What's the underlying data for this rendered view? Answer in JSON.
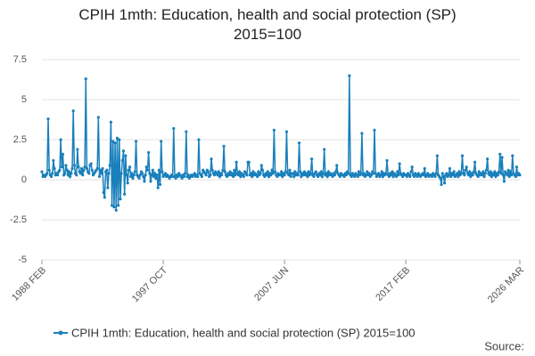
{
  "chart_data": {
    "type": "line",
    "title": "CPIH 1mth: Education, health and social protection (SP) 2015=100",
    "source": "Source:",
    "categories": [
      "1988 FEB",
      null,
      null,
      null,
      null,
      null,
      null,
      null,
      null,
      null,
      null,
      null,
      null,
      null,
      null,
      null,
      null,
      null,
      null,
      null,
      null,
      null,
      null,
      null,
      null,
      null,
      null,
      null,
      null,
      null,
      null,
      null,
      null,
      null,
      null,
      null,
      null,
      null,
      null,
      null,
      null,
      null,
      null,
      null,
      null,
      null,
      null,
      null,
      null,
      null,
      null,
      null,
      null,
      null,
      null,
      null,
      null,
      null,
      null,
      null,
      null,
      null,
      null,
      null,
      null,
      null,
      null,
      null,
      null,
      null,
      null,
      null,
      null,
      null,
      null,
      null,
      null,
      null,
      null,
      null,
      null,
      null,
      null,
      null,
      null,
      null,
      null,
      null,
      null,
      null,
      null,
      null,
      null,
      null,
      null,
      null,
      null,
      null,
      null,
      null,
      null,
      null,
      null,
      null,
      null,
      null,
      null,
      null,
      null,
      null,
      null,
      null,
      null,
      null,
      null,
      null,
      "1997 OCT",
      null,
      null,
      null,
      null,
      null,
      null,
      null,
      null,
      null,
      null,
      null,
      null,
      null,
      null,
      null,
      null,
      null,
      null,
      null,
      null,
      null,
      null,
      null,
      null,
      null,
      null,
      null,
      null,
      null,
      null,
      null,
      null,
      null,
      null,
      null,
      null,
      null,
      null,
      null,
      null,
      null,
      null,
      null,
      null,
      null,
      null,
      null,
      null,
      null,
      null,
      null,
      null,
      null,
      null,
      null,
      null,
      null,
      null,
      null,
      null,
      null,
      null,
      null,
      null,
      null,
      null,
      null,
      null,
      null,
      null,
      null,
      null,
      null,
      null,
      null,
      null,
      null,
      null,
      null,
      null,
      null,
      null,
      null,
      null,
      null,
      null,
      null,
      null,
      null,
      null,
      null,
      null,
      null,
      null,
      null,
      null,
      null,
      null,
      null,
      null,
      null,
      null,
      null,
      null,
      null,
      null,
      null,
      null,
      null,
      null,
      null,
      null,
      null,
      null,
      null,
      "2007 JUN",
      null,
      null,
      null,
      null,
      null,
      null,
      null,
      null,
      null,
      null,
      null,
      null,
      null,
      null,
      null,
      null,
      null,
      null,
      null,
      null,
      null,
      null,
      null,
      null,
      null,
      null,
      null,
      null,
      null,
      null,
      null,
      null,
      null,
      null,
      null,
      null,
      null,
      null,
      null,
      null,
      null,
      null,
      null,
      null,
      null,
      null,
      null,
      null,
      null,
      null,
      null,
      null,
      null,
      null,
      null,
      null,
      null,
      null,
      null,
      null,
      null,
      null,
      null,
      null,
      null,
      null,
      null,
      null,
      null,
      null,
      null,
      null,
      null,
      null,
      null,
      null,
      null,
      null,
      null,
      null,
      null,
      null,
      null,
      null,
      null,
      null,
      null,
      null,
      null,
      null,
      null,
      null,
      null,
      null,
      null,
      null,
      null,
      null,
      null,
      null,
      null,
      null,
      null,
      null,
      null,
      null,
      null,
      null,
      null,
      null,
      null,
      null,
      null,
      null,
      null,
      "2017 FEB",
      null,
      null,
      null,
      null,
      null,
      null,
      null,
      null,
      null,
      null,
      null,
      null,
      null,
      null,
      null,
      null,
      null,
      null,
      null,
      null,
      null,
      null,
      null,
      null,
      null,
      null,
      null,
      null,
      null,
      null,
      null,
      null,
      null,
      null,
      null,
      null,
      null,
      null,
      null,
      null,
      null,
      null,
      null,
      null,
      null,
      null,
      null,
      null,
      null,
      null,
      null,
      null,
      null,
      null,
      null,
      null,
      null,
      null,
      null,
      null,
      null,
      null,
      null,
      null,
      null,
      null,
      null,
      null,
      null,
      null,
      null,
      null,
      null,
      null,
      null,
      null,
      null,
      null,
      null,
      null,
      null,
      null,
      null,
      null,
      null,
      null,
      null,
      null,
      null,
      null,
      null,
      null,
      null,
      null,
      null,
      null,
      null,
      null,
      null,
      null,
      null,
      null,
      null,
      null,
      null,
      null,
      null,
      null,
      "2026 MAR"
    ],
    "series": [
      {
        "name": "CPIH 1mth: Education, health and social protection (SP) 2015=100",
        "color": "#1a80bb",
        "values": [
          0.5,
          0.2,
          0.3,
          0.2,
          0.3,
          0.4,
          3.8,
          0.6,
          0.3,
          0.2,
          0.4,
          1.2,
          0.7,
          0.3,
          0.4,
          0.3,
          0.5,
          0.6,
          2.5,
          0.8,
          1.6,
          0.3,
          0.4,
          0.9,
          0.6,
          0.3,
          0.5,
          0.2,
          0.4,
          0.7,
          4.3,
          0.9,
          0.4,
          0.3,
          1.9,
          0.8,
          0.5,
          0.4,
          0.7,
          0.3,
          0.6,
          0.8,
          6.3,
          0.7,
          0.5,
          0.4,
          0.9,
          1.0,
          0.6,
          0.3,
          0.4,
          0.5,
          0.6,
          0.7,
          3.9,
          0.2,
          0.6,
          0.4,
          0.7,
          -0.8,
          -1.1,
          0.5,
          0.6,
          -0.5,
          0.4,
          0.9,
          3.6,
          -1.6,
          2.4,
          -1.7,
          2.3,
          -1.9,
          2.6,
          -1.6,
          2.5,
          -1.2,
          0.4,
          1.2,
          1.8,
          -0.9,
          1.5,
          0.3,
          -0.2,
          0.6,
          0.8,
          0.2,
          0.4,
          0.1,
          0.3,
          0.5,
          2.4,
          0.3,
          0.2,
          0.1,
          0.3,
          0.5,
          0.4,
          0.2,
          -0.1,
          0.3,
          0.8,
          0.6,
          1.7,
          0.4,
          -0.1,
          0.3,
          0.6,
          0.2,
          0.4,
          0.1,
          0.3,
          -0.5,
          0.6,
          -0.3,
          2.4,
          0.5,
          0.2,
          0.3,
          0.4,
          0.2,
          0.3,
          0.2,
          0.1,
          0.2,
          0.3,
          0.2,
          3.2,
          0.2,
          0.1,
          0.3,
          0.2,
          0.4,
          0.3,
          0.2,
          0.1,
          0.3,
          0.2,
          0.4,
          3.0,
          0.2,
          0.3,
          0.1,
          0.2,
          0.3,
          0.2,
          0.3,
          0.4,
          0.2,
          0.3,
          0.2,
          2.5,
          0.4,
          0.3,
          0.2,
          0.6,
          0.5,
          0.4,
          0.3,
          0.6,
          0.5,
          0.2,
          0.3,
          1.3,
          0.6,
          0.4,
          0.3,
          0.5,
          0.4,
          0.3,
          0.5,
          0.2,
          0.4,
          0.3,
          0.6,
          2.1,
          0.5,
          0.3,
          0.2,
          0.4,
          0.3,
          0.5,
          0.3,
          0.4,
          0.2,
          0.6,
          0.3,
          1.1,
          0.4,
          0.3,
          0.5,
          0.2,
          0.4,
          0.3,
          0.2,
          0.5,
          0.4,
          0.3,
          1.1,
          1.1,
          0.3,
          0.4,
          0.2,
          0.5,
          0.3,
          0.4,
          0.3,
          0.2,
          0.5,
          0.3,
          0.4,
          0.9,
          0.6,
          0.3,
          0.2,
          0.4,
          0.3,
          0.5,
          0.2,
          0.4,
          0.3,
          0.6,
          0.4,
          3.1,
          0.5,
          0.3,
          0.2,
          0.4,
          0.3,
          0.3,
          0.5,
          0.2,
          0.4,
          0.3,
          0.5,
          3.0,
          0.4,
          0.3,
          0.6,
          0.2,
          0.4,
          0.4,
          0.2,
          0.5,
          0.3,
          0.4,
          0.3,
          2.3,
          0.5,
          0.2,
          0.4,
          0.3,
          0.5,
          0.3,
          0.4,
          0.2,
          0.5,
          0.3,
          0.4,
          1.3,
          0.3,
          0.2,
          0.4,
          0.5,
          0.3,
          0.2,
          0.4,
          0.3,
          0.5,
          0.2,
          0.4,
          1.9,
          0.3,
          0.4,
          0.2,
          0.5,
          0.3,
          0.4,
          0.3,
          0.2,
          0.4,
          0.3,
          0.5,
          0.9,
          0.4,
          0.3,
          0.2,
          0.4,
          0.3,
          0.3,
          0.2,
          0.4,
          0.3,
          0.5,
          0.4,
          6.5,
          0.3,
          0.2,
          0.4,
          0.3,
          0.2,
          0.4,
          0.3,
          0.2,
          0.5,
          0.3,
          0.4,
          2.9,
          0.3,
          0.4,
          0.2,
          0.3,
          0.5,
          0.3,
          0.4,
          0.2,
          0.3,
          0.5,
          0.4,
          3.1,
          0.4,
          0.2,
          0.3,
          0.4,
          0.2,
          0.3,
          0.5,
          0.2,
          0.4,
          0.3,
          0.4,
          1.2,
          0.3,
          0.2,
          0.4,
          0.3,
          0.5,
          0.2,
          0.4,
          0.3,
          0.2,
          0.5,
          0.3,
          1.0,
          0.4,
          0.3,
          0.2,
          0.4,
          0.3,
          0.3,
          0.2,
          0.4,
          0.3,
          0.2,
          0.5,
          0.8,
          0.3,
          0.2,
          0.4,
          0.3,
          0.2,
          0.4,
          0.3,
          0.2,
          0.3,
          0.4,
          0.3,
          0.7,
          0.2,
          0.3,
          0.4,
          0.2,
          0.3,
          0.3,
          0.2,
          0.4,
          0.3,
          0.2,
          0.4,
          1.5,
          0.3,
          0.2,
          0.1,
          -0.3,
          0.4,
          0.2,
          -0.2,
          0.3,
          0.4,
          0.2,
          0.3,
          0.7,
          0.2,
          0.4,
          0.3,
          0.5,
          0.2,
          0.3,
          0.4,
          0.2,
          0.5,
          0.3,
          0.4,
          1.5,
          0.4,
          0.3,
          0.6,
          0.8,
          0.4,
          0.3,
          0.5,
          0.2,
          0.4,
          0.3,
          0.5,
          1.1,
          0.4,
          0.3,
          0.2,
          0.5,
          0.3,
          0.4,
          0.3,
          0.5,
          0.2,
          0.4,
          0.6,
          1.3,
          0.4,
          0.3,
          0.5,
          0.2,
          0.4,
          0.3,
          0.5,
          0.2,
          0.4,
          0.3,
          0.5,
          1.6,
          0.4,
          1.4,
          0.3,
          -0.1,
          0.5,
          0.4,
          0.3,
          0.6,
          0.2,
          0.5,
          0.3,
          1.5,
          0.4,
          0.3,
          0.2,
          0.8,
          0.3,
          0.4,
          0.3
        ]
      }
    ],
    "ylim": [
      -5,
      7.5
    ],
    "yticks": [
      -5,
      -2.5,
      0,
      2.5,
      5,
      7.5
    ],
    "grid": true
  }
}
